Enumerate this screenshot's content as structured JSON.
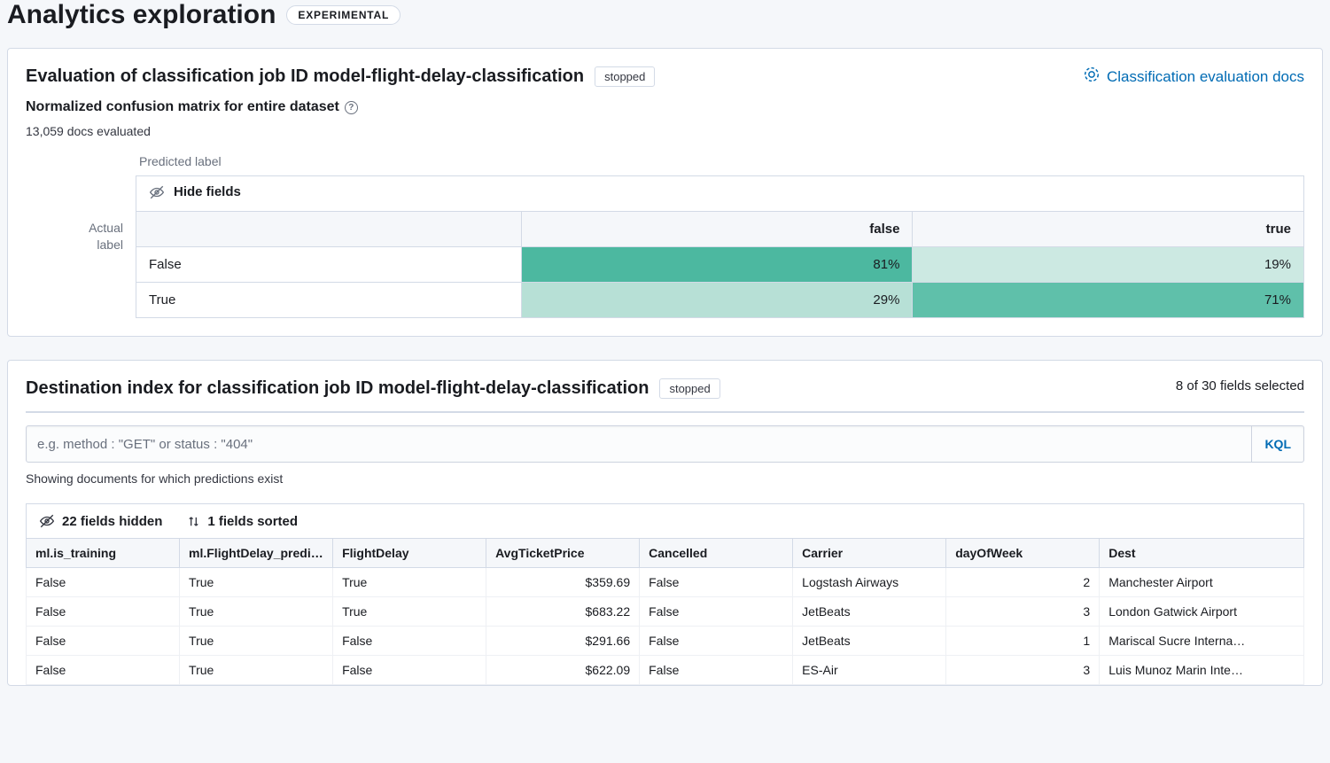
{
  "page": {
    "title": "Analytics exploration",
    "badge": "EXPERIMENTAL"
  },
  "eval_panel": {
    "title": "Evaluation of classification job ID model-flight-delay-classification",
    "status": "stopped",
    "docs_link": "Classification evaluation docs",
    "link_color": "#006bb4",
    "subtitle": "Normalized confusion matrix for entire dataset",
    "docs_evaluated": "13,059 docs evaluated",
    "axis_predicted": "Predicted label",
    "axis_actual_l1": "Actual",
    "axis_actual_l2": "label",
    "hide_fields_label": "Hide fields",
    "matrix": {
      "col_headers": [
        "false",
        "true"
      ],
      "row_headers": [
        "False",
        "True"
      ],
      "cells": [
        [
          {
            "text": "81%",
            "bg": "#4cb8a0",
            "fg": "#1a1c21"
          },
          {
            "text": "19%",
            "bg": "#cce9e2",
            "fg": "#1a1c21"
          }
        ],
        [
          {
            "text": "29%",
            "bg": "#b7e0d6",
            "fg": "#1a1c21"
          },
          {
            "text": "71%",
            "bg": "#5fc0aa",
            "fg": "#1a1c21"
          }
        ]
      ],
      "col_widths": [
        "33%",
        "33.5%",
        "33.5%"
      ]
    }
  },
  "dest_panel": {
    "title": "Destination index for classification job ID model-flight-delay-classification",
    "status": "stopped",
    "fields_selected": "8 of 30 fields selected",
    "query_placeholder": "e.g. method : \"GET\" or status : \"404\"",
    "kql_label": "KQL",
    "showing": "Showing documents for which predictions exist",
    "toolbar": {
      "hidden_label": "22 fields hidden",
      "sorted_label": "1 fields sorted"
    },
    "table": {
      "columns": [
        {
          "key": "ml_is_training",
          "label": "ml.is_training",
          "align": "left",
          "width": "12%"
        },
        {
          "key": "ml_pred",
          "label": "ml.FlightDelay_predic…",
          "align": "left",
          "width": "12%"
        },
        {
          "key": "flightdelay",
          "label": "FlightDelay",
          "align": "left",
          "width": "12%"
        },
        {
          "key": "avgticket",
          "label": "AvgTicketPrice",
          "align": "right",
          "width": "12%"
        },
        {
          "key": "cancelled",
          "label": "Cancelled",
          "align": "left",
          "width": "12%"
        },
        {
          "key": "carrier",
          "label": "Carrier",
          "align": "left",
          "width": "12%"
        },
        {
          "key": "dayofweek",
          "label": "dayOfWeek",
          "align": "right",
          "width": "12%"
        },
        {
          "key": "dest",
          "label": "Dest",
          "align": "left",
          "width": "16%"
        }
      ],
      "rows": [
        {
          "ml_is_training": "False",
          "ml_pred": "True",
          "flightdelay": "True",
          "avgticket": "$359.69",
          "cancelled": "False",
          "carrier": "Logstash Airways",
          "dayofweek": "2",
          "dest": "Manchester Airport"
        },
        {
          "ml_is_training": "False",
          "ml_pred": "True",
          "flightdelay": "True",
          "avgticket": "$683.22",
          "cancelled": "False",
          "carrier": "JetBeats",
          "dayofweek": "3",
          "dest": "London Gatwick Airport"
        },
        {
          "ml_is_training": "False",
          "ml_pred": "True",
          "flightdelay": "False",
          "avgticket": "$291.66",
          "cancelled": "False",
          "carrier": "JetBeats",
          "dayofweek": "1",
          "dest": "Mariscal Sucre Interna…"
        },
        {
          "ml_is_training": "False",
          "ml_pred": "True",
          "flightdelay": "False",
          "avgticket": "$622.09",
          "cancelled": "False",
          "carrier": "ES-Air",
          "dayofweek": "3",
          "dest": "Luis Munoz Marin Inte…"
        }
      ]
    }
  },
  "colors": {
    "panel_border": "#d3dae6",
    "bg": "#f5f7fa",
    "text": "#1a1c21",
    "muted": "#69707d"
  }
}
